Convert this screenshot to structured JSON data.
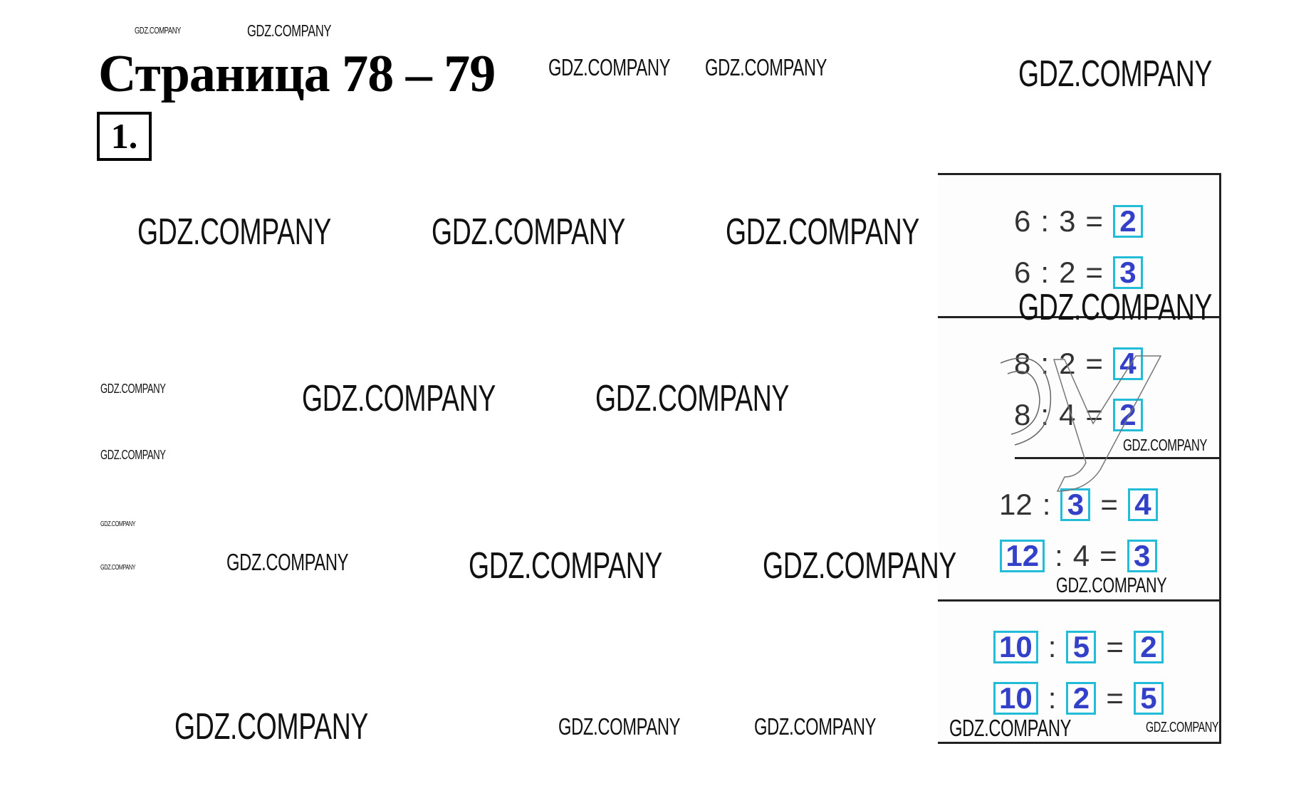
{
  "page": {
    "title": "Страница 78 – 79",
    "exercise_number": "1."
  },
  "watermark": "GDZ.COMPANY",
  "colors": {
    "answer_border": "#22bcd8",
    "answer_text": "#3340c8"
  },
  "sections": [
    {
      "rows": [
        [
          {
            "t": "6"
          },
          {
            "t": ":"
          },
          {
            "t": "3"
          },
          {
            "t": "="
          },
          {
            "t": "2",
            "box": true
          }
        ],
        [
          {
            "t": "6"
          },
          {
            "t": ":"
          },
          {
            "t": "2"
          },
          {
            "t": "="
          },
          {
            "t": "3",
            "box": true
          }
        ]
      ]
    },
    {
      "rows": [
        [
          {
            "t": "8"
          },
          {
            "t": ":"
          },
          {
            "t": "2"
          },
          {
            "t": "="
          },
          {
            "t": "4",
            "box": true
          }
        ],
        [
          {
            "t": "8"
          },
          {
            "t": ":"
          },
          {
            "t": "4"
          },
          {
            "t": "="
          },
          {
            "t": "2",
            "box": true
          }
        ]
      ]
    },
    {
      "rows": [
        [
          {
            "t": "12"
          },
          {
            "t": ":"
          },
          {
            "t": "3",
            "box": true
          },
          {
            "t": "="
          },
          {
            "t": "4",
            "box": true
          }
        ],
        [
          {
            "t": "12",
            "box": true
          },
          {
            "t": ":"
          },
          {
            "t": "4"
          },
          {
            "t": "="
          },
          {
            "t": "3",
            "box": true
          }
        ]
      ]
    },
    {
      "rows": [
        [
          {
            "t": "10",
            "box": true
          },
          {
            "t": ":"
          },
          {
            "t": "5",
            "box": true
          },
          {
            "t": "="
          },
          {
            "t": "2",
            "box": true
          }
        ],
        [
          {
            "t": "10",
            "box": true
          },
          {
            "t": ":"
          },
          {
            "t": "2",
            "box": true
          },
          {
            "t": "="
          },
          {
            "t": "5",
            "box": true
          }
        ]
      ]
    }
  ]
}
